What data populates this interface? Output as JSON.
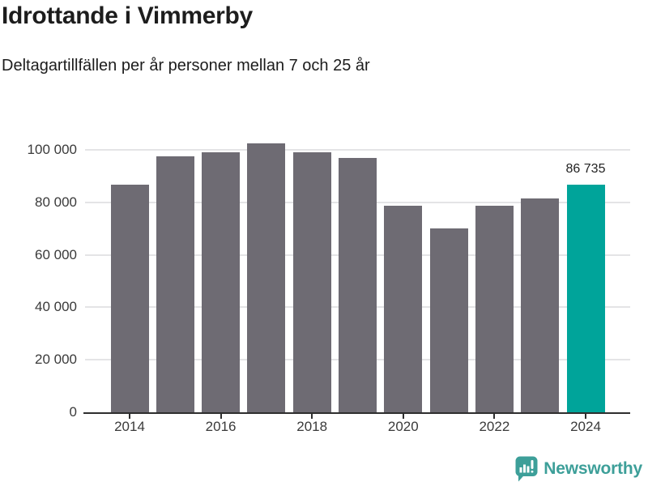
{
  "header": {},
  "chart_data": {
    "type": "bar",
    "title": "Idrottande i Vimmerby",
    "subtitle": "Deltagartillfällen per år personer mellan 7 och 25 år",
    "categories": [
      "2014",
      "2015",
      "2016",
      "2017",
      "2018",
      "2019",
      "2020",
      "2021",
      "2022",
      "2023",
      "2024"
    ],
    "values": [
      86800,
      97500,
      98900,
      102500,
      99200,
      96800,
      78700,
      69900,
      78600,
      81600,
      86735
    ],
    "highlight": {
      "index": 10,
      "label": "86 735",
      "color": "#00a49a"
    },
    "bar_color": "#6e6b73",
    "yticks": [
      0,
      20000,
      40000,
      60000,
      80000,
      100000
    ],
    "ytick_labels": [
      "0",
      "20 000",
      "40 000",
      "60 000",
      "80 000",
      "100 000"
    ],
    "xticks": [
      "2014",
      "2016",
      "2018",
      "2020",
      "2022",
      "2024"
    ],
    "ylim": [
      0,
      104600
    ],
    "xlabel": "",
    "ylabel": "",
    "grid": true,
    "legend": "none",
    "axis_color": "#2e2e2e",
    "grid_color": "#e4e4e6",
    "tick_label_color": "#3a3a3a",
    "value_label_color": "#222222"
  },
  "footer": {
    "brand": "Newsworthy",
    "brand_color": "#3d9f99",
    "logo_icon": "newsworthy-speech-bubble-bar-chart-icon"
  }
}
